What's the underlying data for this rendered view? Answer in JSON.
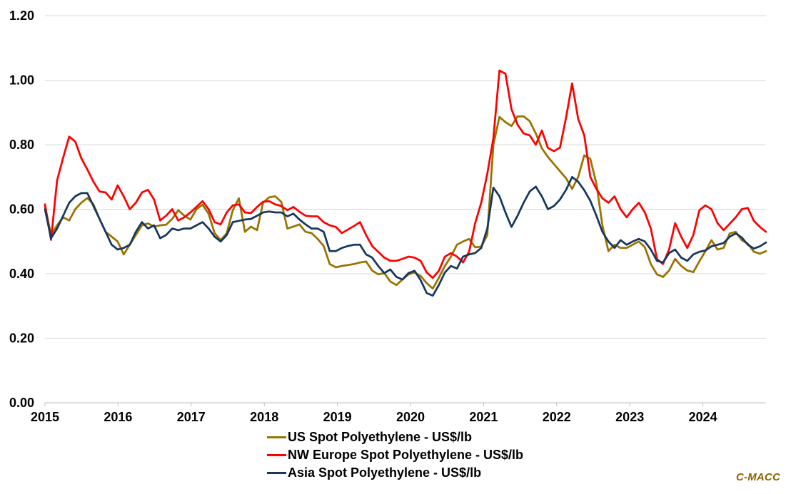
{
  "watermark": {
    "text": "C-MACC",
    "color": "#8E6300"
  },
  "axis_style": {
    "grid_color": "#D9D9D9",
    "axis_color": "#BFBFBF",
    "label_color": "#000000"
  },
  "chart_data": {
    "type": "line",
    "title": "",
    "xlabel": "",
    "ylabel": "US$/lb",
    "ylim": [
      0.0,
      1.2
    ],
    "grid": true,
    "legend_position": "bottom-center",
    "y_tick_labels": [
      "0.00",
      "0.20",
      "0.40",
      "0.60",
      "0.80",
      "1.00",
      "1.20"
    ],
    "x_tick_labels": [
      "2015",
      "2016",
      "2017",
      "2018",
      "2019",
      "2020",
      "2021",
      "2022",
      "2023",
      "2024"
    ],
    "x_start": "Jan 2015",
    "x_end": "Dec 2024",
    "points_per_year": 12,
    "series": [
      {
        "id": "us",
        "name": "US Spot Polyethylene - US$/lb",
        "color": "#997300",
        "values": [
          0.61,
          0.52,
          0.55,
          0.575,
          0.565,
          0.6,
          0.62,
          0.635,
          0.615,
          0.57,
          0.53,
          0.515,
          0.5,
          0.46,
          0.49,
          0.52,
          0.55,
          0.556,
          0.546,
          0.55,
          0.552,
          0.57,
          0.597,
          0.58,
          0.568,
          0.6,
          0.614,
          0.586,
          0.526,
          0.504,
          0.526,
          0.597,
          0.634,
          0.53,
          0.546,
          0.535,
          0.62,
          0.637,
          0.64,
          0.623,
          0.54,
          0.546,
          0.553,
          0.53,
          0.526,
          0.508,
          0.486,
          0.43,
          0.42,
          0.424,
          0.427,
          0.43,
          0.435,
          0.438,
          0.41,
          0.398,
          0.402,
          0.376,
          0.365,
          0.382,
          0.398,
          0.404,
          0.393,
          0.371,
          0.354,
          0.387,
          0.424,
          0.453,
          0.49,
          0.5,
          0.508,
          0.482,
          0.484,
          0.52,
          0.8,
          0.886,
          0.87,
          0.858,
          0.888,
          0.888,
          0.873,
          0.835,
          0.789,
          0.762,
          0.74,
          0.718,
          0.696,
          0.663,
          0.7,
          0.767,
          0.756,
          0.68,
          0.55,
          0.47,
          0.49,
          0.48,
          0.48,
          0.49,
          0.5,
          0.482,
          0.43,
          0.398,
          0.39,
          0.41,
          0.446,
          0.424,
          0.41,
          0.405,
          0.438,
          0.47,
          0.504,
          0.475,
          0.48,
          0.525,
          0.53,
          0.504,
          0.493,
          0.468,
          0.462,
          0.47
        ]
      },
      {
        "id": "nw-europe",
        "name": "NW Europe Spot Polyethylene - US$/lb",
        "color": "#FF0000",
        "values": [
          0.615,
          0.505,
          0.69,
          0.76,
          0.825,
          0.81,
          0.758,
          0.723,
          0.685,
          0.655,
          0.652,
          0.63,
          0.674,
          0.64,
          0.6,
          0.62,
          0.652,
          0.66,
          0.63,
          0.565,
          0.58,
          0.6,
          0.565,
          0.575,
          0.59,
          0.607,
          0.625,
          0.6,
          0.56,
          0.553,
          0.59,
          0.612,
          0.615,
          0.59,
          0.588,
          0.607,
          0.623,
          0.625,
          0.615,
          0.61,
          0.597,
          0.607,
          0.592,
          0.58,
          0.578,
          0.578,
          0.56,
          0.55,
          0.545,
          0.526,
          0.537,
          0.548,
          0.56,
          0.52,
          0.486,
          0.468,
          0.45,
          0.44,
          0.44,
          0.446,
          0.453,
          0.45,
          0.44,
          0.404,
          0.387,
          0.409,
          0.453,
          0.464,
          0.453,
          0.435,
          0.468,
          0.557,
          0.62,
          0.71,
          0.82,
          1.03,
          1.02,
          0.91,
          0.862,
          0.835,
          0.829,
          0.8,
          0.844,
          0.79,
          0.78,
          0.791,
          0.884,
          0.99,
          0.88,
          0.829,
          0.7,
          0.663,
          0.634,
          0.62,
          0.64,
          0.6,
          0.575,
          0.6,
          0.62,
          0.59,
          0.54,
          0.446,
          0.43,
          0.475,
          0.557,
          0.515,
          0.48,
          0.52,
          0.597,
          0.612,
          0.6,
          0.557,
          0.535,
          0.555,
          0.575,
          0.6,
          0.604,
          0.564,
          0.545,
          0.53
        ]
      },
      {
        "id": "asia",
        "name": "Asia Spot Polyethylene - US$/lb",
        "color": "#17375E",
        "values": [
          0.6,
          0.51,
          0.54,
          0.58,
          0.62,
          0.64,
          0.65,
          0.65,
          0.61,
          0.57,
          0.53,
          0.49,
          0.475,
          0.48,
          0.49,
          0.53,
          0.56,
          0.54,
          0.55,
          0.51,
          0.52,
          0.54,
          0.535,
          0.54,
          0.54,
          0.55,
          0.56,
          0.54,
          0.515,
          0.5,
          0.52,
          0.56,
          0.564,
          0.568,
          0.57,
          0.58,
          0.59,
          0.593,
          0.59,
          0.59,
          0.578,
          0.586,
          0.568,
          0.553,
          0.54,
          0.54,
          0.53,
          0.47,
          0.47,
          0.48,
          0.486,
          0.49,
          0.49,
          0.46,
          0.45,
          0.424,
          0.402,
          0.413,
          0.39,
          0.382,
          0.402,
          0.409,
          0.38,
          0.34,
          0.332,
          0.365,
          0.404,
          0.424,
          0.416,
          0.453,
          0.46,
          0.464,
          0.48,
          0.54,
          0.667,
          0.64,
          0.59,
          0.545,
          0.58,
          0.62,
          0.655,
          0.67,
          0.64,
          0.6,
          0.61,
          0.63,
          0.66,
          0.7,
          0.685,
          0.659,
          0.626,
          0.58,
          0.53,
          0.5,
          0.48,
          0.504,
          0.49,
          0.5,
          0.508,
          0.5,
          0.475,
          0.44,
          0.435,
          0.464,
          0.475,
          0.45,
          0.44,
          0.46,
          0.468,
          0.472,
          0.485,
          0.49,
          0.495,
          0.515,
          0.525,
          0.512,
          0.49,
          0.478,
          0.485,
          0.497
        ]
      }
    ]
  }
}
